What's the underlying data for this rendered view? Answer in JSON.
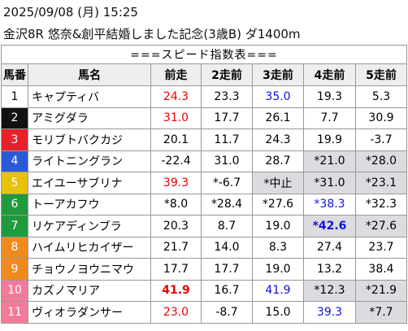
{
  "header": {
    "datetime": "2025/09/08 (月) 15:25",
    "race": "金沢8R 悠奈&創平結婚しました記念(3歳B) ダ1400m"
  },
  "table": {
    "caption": "===スピード指数表===",
    "columns": [
      "馬番",
      "馬名",
      "前走",
      "2走前",
      "3走前",
      "4走前",
      "5走前"
    ],
    "rows": [
      [
        "1",
        "キャプティバ",
        "24.3",
        "23.3",
        "35.0",
        "19.3",
        "5.3"
      ],
      [
        "2",
        "アミグダラ",
        "31.0",
        "17.7",
        "26.1",
        "7.7",
        "30.9"
      ],
      [
        "3",
        "モリブトバクカジ",
        "20.1",
        "11.7",
        "24.3",
        "19.9",
        "-3.7"
      ],
      [
        "4",
        "ライトニングラン",
        "-22.4",
        "31.0",
        "28.7",
        "*21.0",
        "*28.0"
      ],
      [
        "5",
        "エイユーサブリナ",
        "39.3",
        "*-6.7",
        "*中止",
        "*31.0",
        "*23.1"
      ],
      [
        "6",
        "トーアカフウ",
        "*8.0",
        "*28.4",
        "*27.6",
        "*38.3",
        "*32.3"
      ],
      [
        "7",
        "リケアディンブラ",
        "20.3",
        "8.7",
        "19.0",
        "*42.6",
        "*27.6"
      ],
      [
        "8",
        "ハイムリヒカイザー",
        "21.7",
        "14.0",
        "8.3",
        "27.4",
        "23.7"
      ],
      [
        "9",
        "チョウノヨウニマウ",
        "17.7",
        "17.7",
        "19.0",
        "13.2",
        "38.4"
      ],
      [
        "10",
        "カズノマリア",
        "41.9",
        "16.7",
        "41.9",
        "*12.3",
        "*21.9"
      ],
      [
        "11",
        "ヴィオラダンサー",
        "23.0",
        "-8.7",
        "15.0",
        "39.3",
        "*7.7"
      ]
    ]
  }
}
